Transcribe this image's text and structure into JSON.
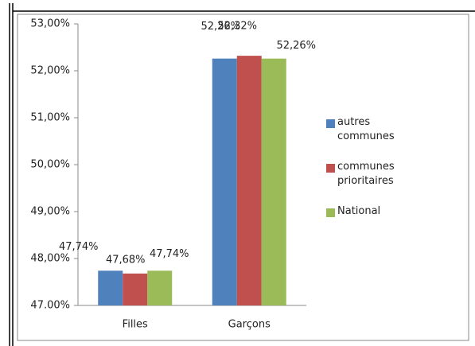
{
  "chart_data": {
    "type": "bar",
    "categories": [
      "Filles",
      "Garçons"
    ],
    "series": [
      {
        "name": "autres communes",
        "color": "#4f81bd",
        "values": [
          47.74,
          52.26
        ],
        "value_labels": [
          "47,74%",
          "52,26%"
        ]
      },
      {
        "name": "communes prioritaires",
        "color": "#c0504d",
        "values": [
          47.68,
          52.32
        ],
        "value_labels": [
          "47,68%",
          "52,32%"
        ]
      },
      {
        "name": "National",
        "color": "#9bbb59",
        "values": [
          47.74,
          52.26
        ],
        "value_labels": [
          "47,74%",
          "52,26%"
        ]
      }
    ],
    "ylim": [
      47,
      53
    ],
    "yticks": [
      {
        "value": 47,
        "label": "47.00%"
      },
      {
        "value": 48,
        "label": "48,00%"
      },
      {
        "value": 49,
        "label": "49,00%"
      },
      {
        "value": 50,
        "label": "50,00%"
      },
      {
        "value": 51,
        "label": "51,00%"
      },
      {
        "value": 52,
        "label": "52,00%"
      },
      {
        "value": 53,
        "label": "53,00%"
      }
    ],
    "legend": "right",
    "grid": false
  }
}
